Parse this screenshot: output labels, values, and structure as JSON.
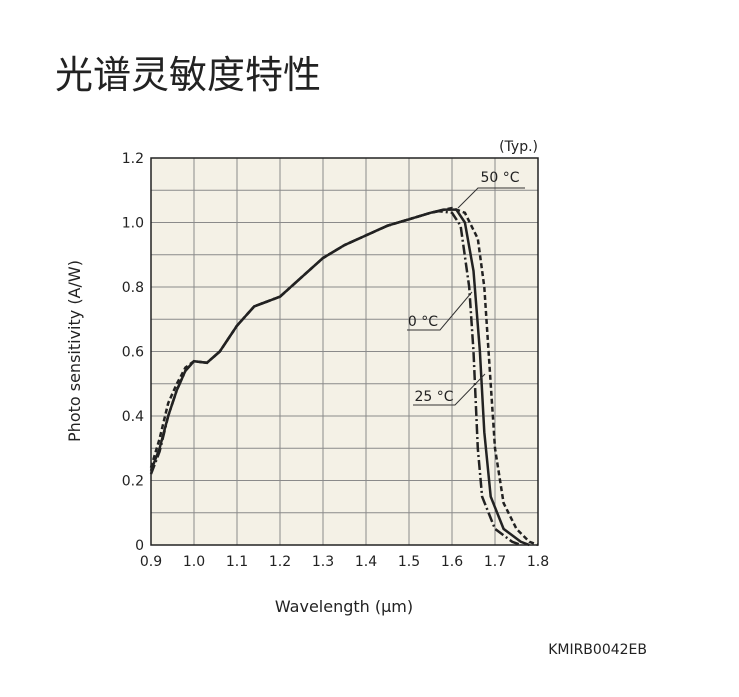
{
  "chart_data": {
    "type": "line",
    "title": "光谱灵敏度特性",
    "note": "(Typ.)",
    "xlabel": "Wavelength (μm)",
    "ylabel": "Photo sensitivity (A/W)",
    "code": "KMIRB0042EB",
    "background": "#f4f1e6",
    "grid": true,
    "xlim": [
      0.9,
      1.8
    ],
    "ylim": [
      0,
      1.2
    ],
    "xticks": [
      0.9,
      {
        "value": 1,
        "label": "1.0"
      },
      1.1,
      1.2,
      1.3,
      1.4,
      1.5,
      1.6,
      1.7,
      1.8
    ],
    "yticks": [
      0,
      0.2,
      0.4,
      0.6,
      0.8,
      {
        "value": 1,
        "label": "1.0"
      },
      1.2
    ],
    "ygrid": [
      0.1,
      0.3,
      0.5,
      0.7,
      0.9,
      1.1
    ],
    "series": [
      {
        "name": "0 °C",
        "color": "#222222",
        "line_style": "dashdot",
        "x": [
          0.9,
          0.92,
          0.94,
          0.96,
          0.98,
          1.0,
          1.03,
          1.06,
          1.1,
          1.14,
          1.18,
          1.2,
          1.25,
          1.3,
          1.35,
          1.4,
          1.45,
          1.5,
          1.55,
          1.57,
          1.6,
          1.62,
          1.64,
          1.65,
          1.66,
          1.67,
          1.7,
          1.74,
          1.76
        ],
        "values": [
          0.22,
          0.29,
          0.4,
          0.48,
          0.54,
          0.57,
          0.565,
          0.6,
          0.68,
          0.74,
          0.76,
          0.77,
          0.83,
          0.89,
          0.93,
          0.96,
          0.99,
          1.01,
          1.03,
          1.035,
          1.03,
          0.99,
          0.8,
          0.6,
          0.3,
          0.15,
          0.05,
          0.01,
          0
        ]
      },
      {
        "name": "25 °C",
        "color": "#222222",
        "line_style": "solid",
        "x": [
          0.9,
          0.92,
          0.94,
          0.96,
          0.98,
          1.0,
          1.03,
          1.06,
          1.1,
          1.14,
          1.18,
          1.2,
          1.25,
          1.3,
          1.35,
          1.4,
          1.45,
          1.5,
          1.55,
          1.58,
          1.61,
          1.63,
          1.65,
          1.665,
          1.675,
          1.69,
          1.72,
          1.76,
          1.78
        ],
        "values": [
          0.23,
          0.3,
          0.4,
          0.48,
          0.54,
          0.57,
          0.565,
          0.6,
          0.68,
          0.74,
          0.76,
          0.77,
          0.83,
          0.89,
          0.93,
          0.96,
          0.99,
          1.01,
          1.03,
          1.04,
          1.04,
          1.0,
          0.85,
          0.6,
          0.35,
          0.15,
          0.05,
          0.01,
          0
        ]
      },
      {
        "name": "50 °C",
        "color": "#222222",
        "line_style": "dashed",
        "x": [
          0.9,
          0.92,
          0.94,
          0.96,
          0.98,
          1.0,
          1.03,
          1.06,
          1.1,
          1.14,
          1.18,
          1.2,
          1.25,
          1.3,
          1.35,
          1.4,
          1.45,
          1.5,
          1.55,
          1.6,
          1.63,
          1.66,
          1.675,
          1.69,
          1.7,
          1.72,
          1.75,
          1.78,
          1.8
        ],
        "values": [
          0.24,
          0.33,
          0.44,
          0.5,
          0.55,
          0.57,
          0.565,
          0.6,
          0.68,
          0.74,
          0.76,
          0.77,
          0.83,
          0.89,
          0.93,
          0.96,
          0.99,
          1.01,
          1.03,
          1.045,
          1.03,
          0.95,
          0.8,
          0.5,
          0.3,
          0.13,
          0.05,
          0.01,
          0
        ]
      }
    ]
  }
}
